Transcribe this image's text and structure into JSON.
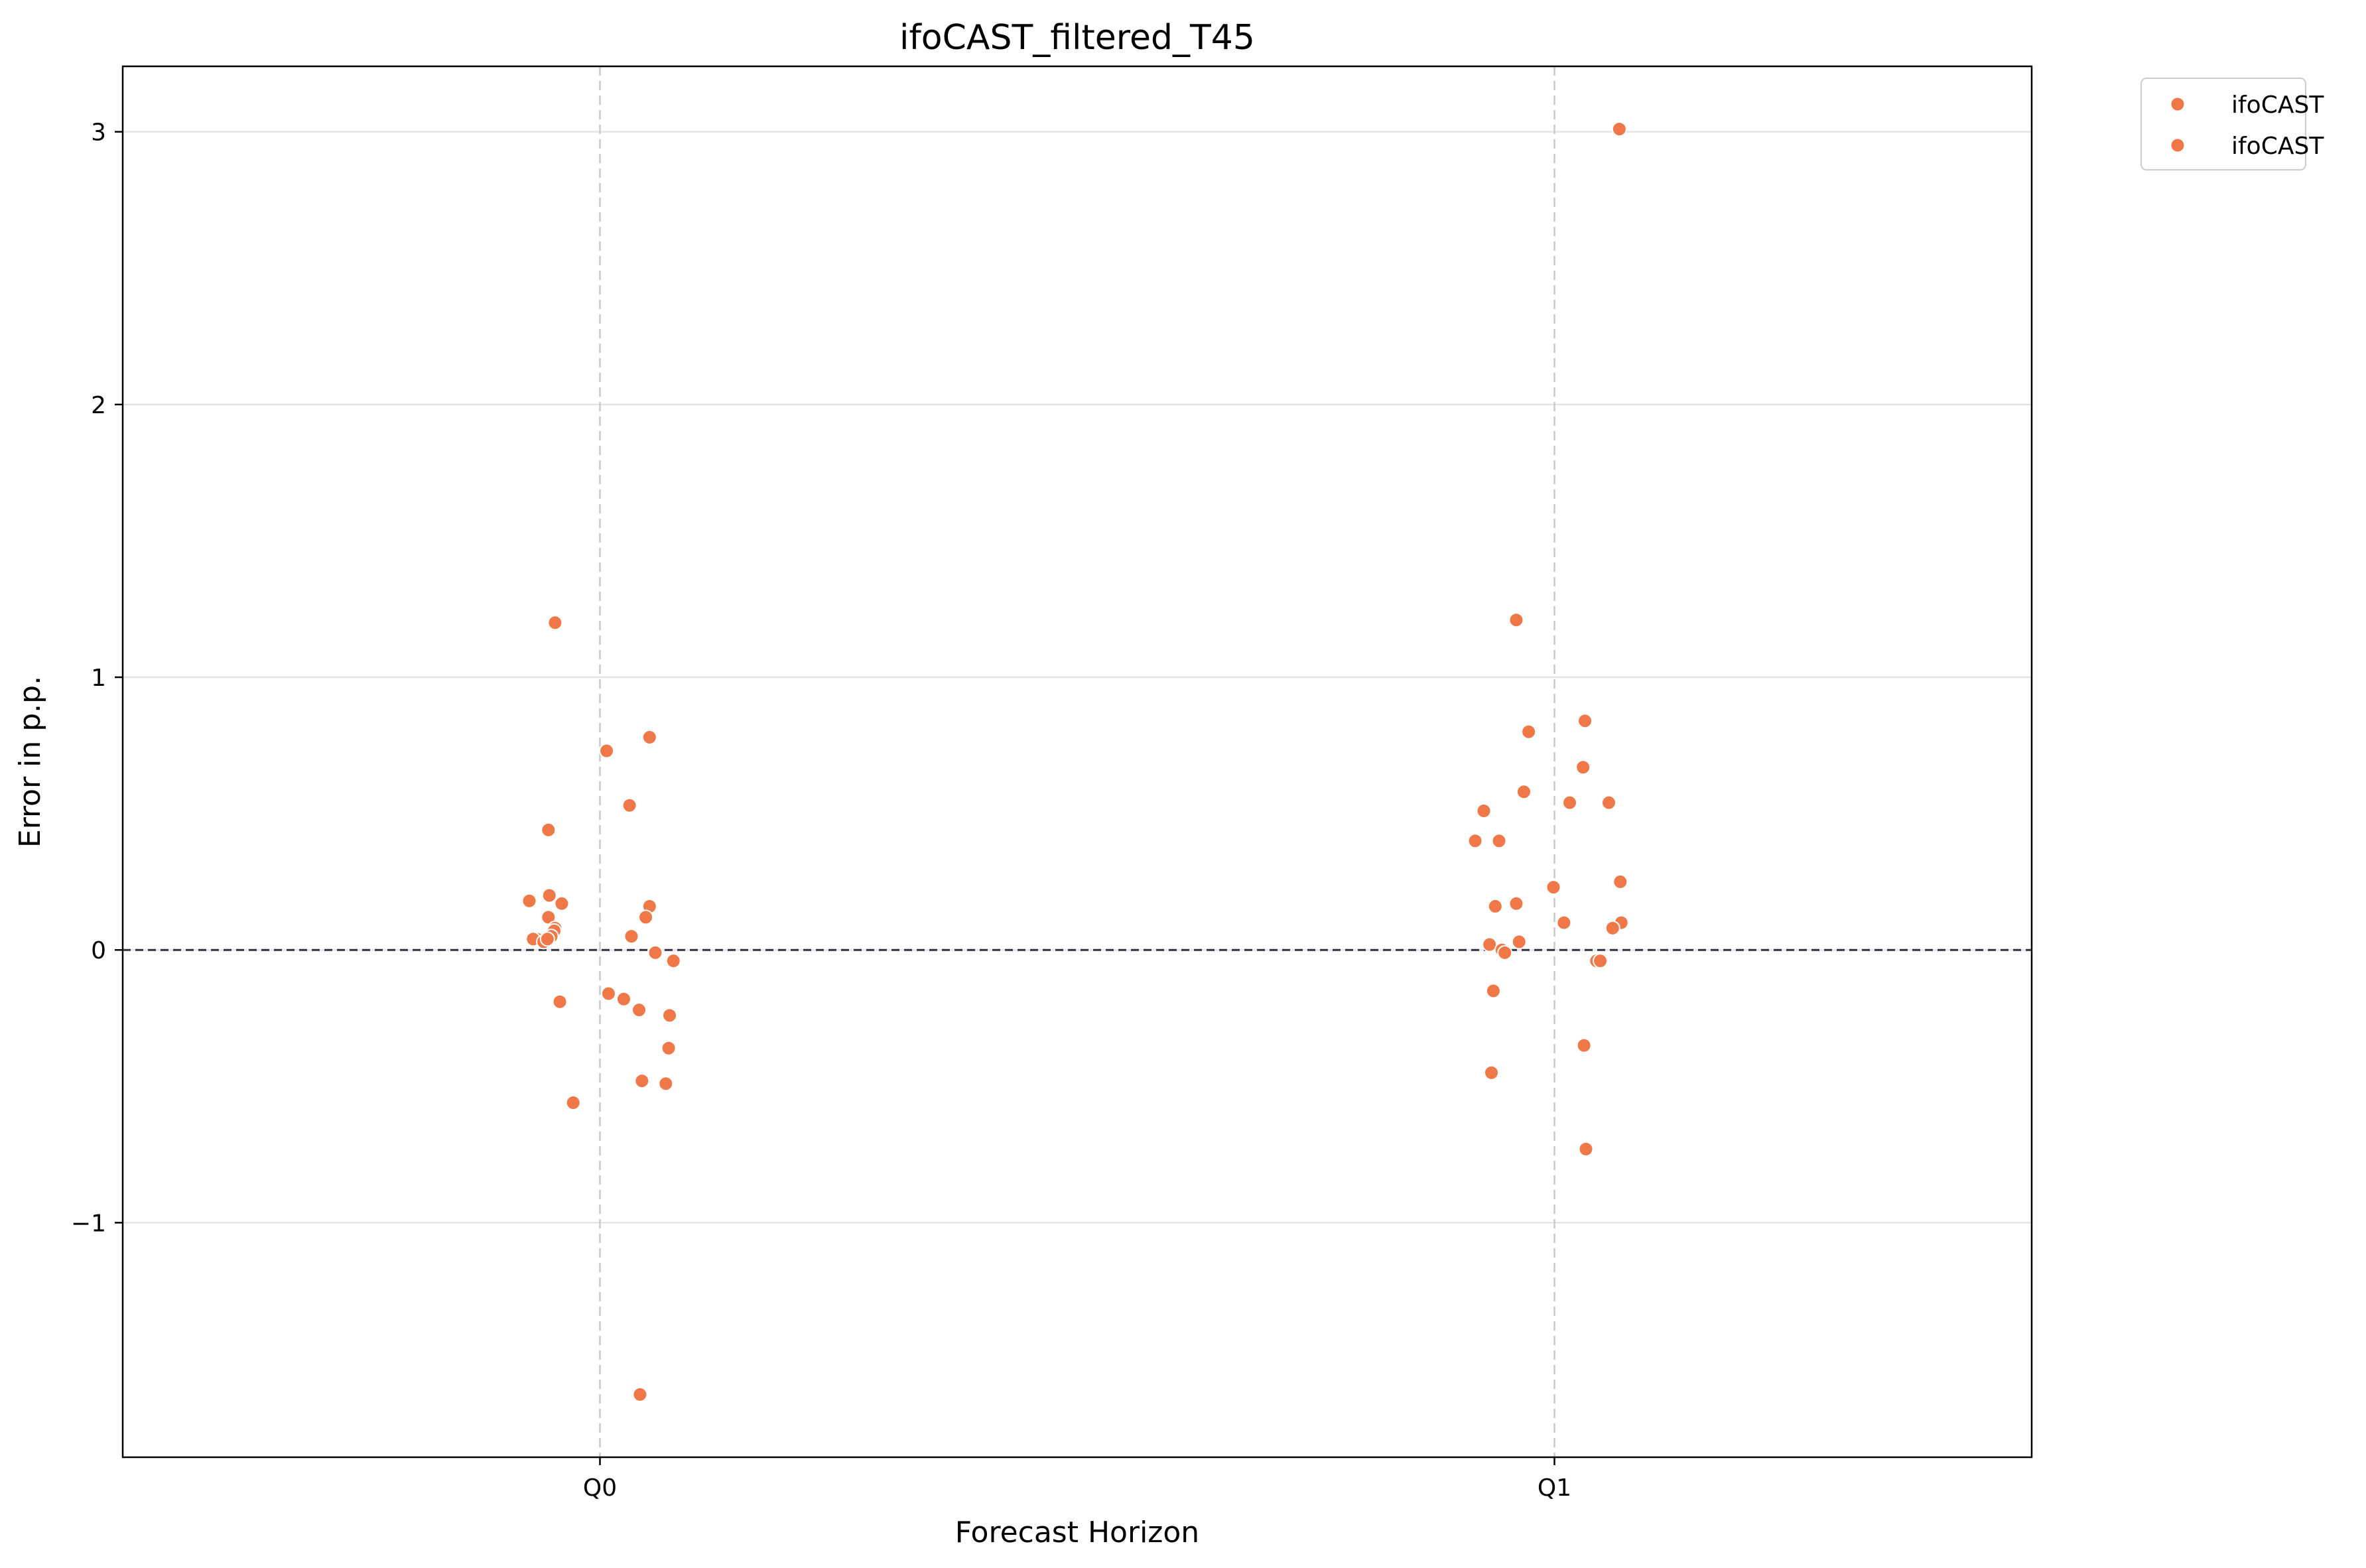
{
  "chart_data": {
    "type": "scatter",
    "title": "ifoCAST_filtered_T45",
    "xlabel": "Forecast Horizon",
    "ylabel": "Error in p.p.",
    "categories": [
      "Q0",
      "Q1"
    ],
    "xlim": [
      -0.5,
      1.5
    ],
    "ylim": [
      -1.86,
      3.24
    ],
    "yticks": [
      -1,
      0,
      1,
      2,
      3
    ],
    "ytick_labels": [
      "−1",
      "0",
      "1",
      "2",
      "3"
    ],
    "grid": "horizontal on; vertical dashed at category positions",
    "reference_line": {
      "y": 0,
      "style": "dashed"
    },
    "legend": {
      "placement": "outside top-right",
      "entries": [
        "ifoCAST",
        "ifoCAST"
      ]
    },
    "marker_color": "#F07848",
    "series": [
      {
        "name": "ifoCAST",
        "category": "Q0",
        "points": [
          {
            "x": -0.047,
            "y": 1.2
          },
          {
            "x": -0.054,
            "y": 0.44
          },
          {
            "x": -0.074,
            "y": 0.18
          },
          {
            "x": -0.053,
            "y": 0.2
          },
          {
            "x": -0.04,
            "y": 0.17
          },
          {
            "x": -0.054,
            "y": 0.12
          },
          {
            "x": -0.047,
            "y": 0.08
          },
          {
            "x": -0.048,
            "y": 0.07
          },
          {
            "x": -0.051,
            "y": 0.05
          },
          {
            "x": -0.066,
            "y": 0.04
          },
          {
            "x": -0.07,
            "y": 0.04
          },
          {
            "x": -0.059,
            "y": 0.03
          },
          {
            "x": -0.055,
            "y": 0.04
          },
          {
            "x": -0.042,
            "y": -0.19
          },
          {
            "x": -0.028,
            "y": -0.56
          },
          {
            "x": 0.007,
            "y": 0.73
          },
          {
            "x": 0.052,
            "y": 0.78
          },
          {
            "x": 0.031,
            "y": 0.53
          },
          {
            "x": 0.052,
            "y": 0.16
          },
          {
            "x": 0.048,
            "y": 0.12
          },
          {
            "x": 0.033,
            "y": 0.05
          },
          {
            "x": 0.058,
            "y": -0.01
          },
          {
            "x": 0.077,
            "y": -0.04
          },
          {
            "x": 0.009,
            "y": -0.16
          },
          {
            "x": 0.025,
            "y": -0.18
          },
          {
            "x": 0.041,
            "y": -0.22
          },
          {
            "x": 0.073,
            "y": -0.24
          },
          {
            "x": 0.072,
            "y": -0.36
          },
          {
            "x": 0.044,
            "y": -0.48
          },
          {
            "x": 0.069,
            "y": -0.49
          },
          {
            "x": 0.042,
            "y": -1.63
          }
        ]
      },
      {
        "name": "ifoCAST",
        "category": "Q1",
        "points": [
          {
            "x": 1.068,
            "y": 3.01
          },
          {
            "x": 0.96,
            "y": 1.21
          },
          {
            "x": 1.032,
            "y": 0.84
          },
          {
            "x": 0.973,
            "y": 0.8
          },
          {
            "x": 1.03,
            "y": 0.67
          },
          {
            "x": 0.968,
            "y": 0.58
          },
          {
            "x": 1.016,
            "y": 0.54
          },
          {
            "x": 1.057,
            "y": 0.54
          },
          {
            "x": 0.926,
            "y": 0.51
          },
          {
            "x": 0.917,
            "y": 0.4
          },
          {
            "x": 0.942,
            "y": 0.4
          },
          {
            "x": 1.069,
            "y": 0.25
          },
          {
            "x": 0.999,
            "y": 0.23
          },
          {
            "x": 0.938,
            "y": 0.16
          },
          {
            "x": 0.96,
            "y": 0.17
          },
          {
            "x": 1.01,
            "y": 0.1
          },
          {
            "x": 1.07,
            "y": 0.1
          },
          {
            "x": 1.061,
            "y": 0.08
          },
          {
            "x": 0.963,
            "y": 0.03
          },
          {
            "x": 0.932,
            "y": 0.02
          },
          {
            "x": 0.945,
            "y": 0.0
          },
          {
            "x": 0.948,
            "y": -0.01
          },
          {
            "x": 1.044,
            "y": -0.04
          },
          {
            "x": 1.048,
            "y": -0.04
          },
          {
            "x": 0.936,
            "y": -0.15
          },
          {
            "x": 1.031,
            "y": -0.35
          },
          {
            "x": 0.934,
            "y": -0.45
          },
          {
            "x": 1.033,
            "y": -0.73
          }
        ]
      }
    ]
  }
}
